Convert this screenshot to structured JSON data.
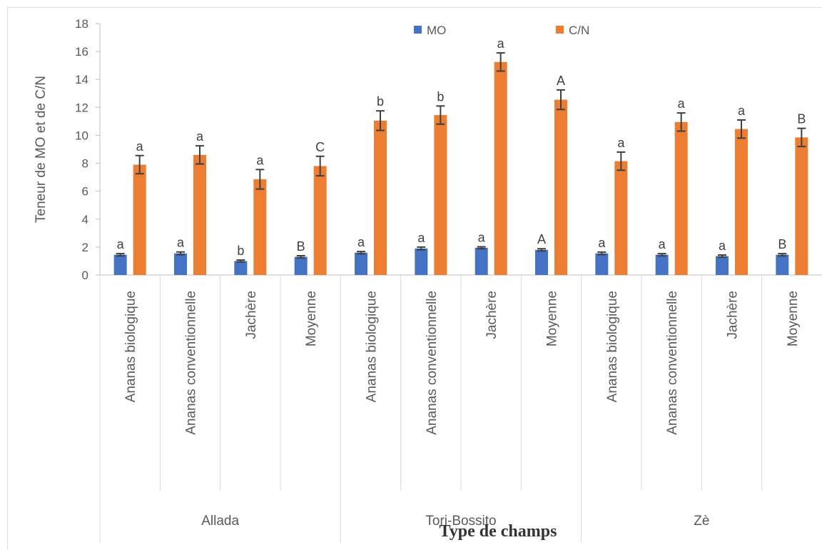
{
  "chart_data": {
    "type": "bar",
    "title": "",
    "ylabel": "Teneur de MO et de C/N",
    "xlabel": "Type de champs",
    "ylim": [
      0,
      18
    ],
    "yticks": [
      0,
      2,
      4,
      6,
      8,
      10,
      12,
      14,
      16,
      18
    ],
    "legend_position": "top-center",
    "groups": [
      {
        "name": "Allada",
        "categories": [
          "Ananas biologique",
          "Ananas conventionnelle",
          "Jachère",
          "Moyenne"
        ]
      },
      {
        "name": "Tori-Bossito",
        "categories": [
          "Ananas biologique",
          "Ananas conventionnelle",
          "Jachère",
          "Moyenne"
        ]
      },
      {
        "name": "Zè",
        "categories": [
          "Ananas biologique",
          "Ananas conventionnelle",
          "Jachère",
          "Moyenne"
        ]
      }
    ],
    "series": [
      {
        "name": "MO",
        "color": "#4472c4",
        "values": [
          1.45,
          1.55,
          1.0,
          1.3,
          1.6,
          1.9,
          1.95,
          1.8,
          1.55,
          1.45,
          1.35,
          1.45
        ],
        "errors": [
          0.08,
          0.1,
          0.07,
          0.08,
          0.08,
          0.1,
          0.07,
          0.08,
          0.09,
          0.08,
          0.08,
          0.08
        ],
        "significance": [
          "a",
          "a",
          "b",
          "B",
          "a",
          "a",
          "a",
          "A",
          "a",
          "a",
          "a",
          "B"
        ]
      },
      {
        "name": "C/N",
        "color": "#ed7d31",
        "values": [
          7.9,
          8.6,
          6.85,
          7.8,
          11.05,
          11.45,
          15.25,
          12.55,
          8.15,
          10.95,
          10.45,
          9.85
        ],
        "errors": [
          0.65,
          0.65,
          0.7,
          0.7,
          0.7,
          0.65,
          0.65,
          0.7,
          0.65,
          0.65,
          0.65,
          0.65
        ],
        "significance": [
          "a",
          "a",
          "a",
          "C",
          "b",
          "b",
          "a",
          "A",
          "a",
          "a",
          "a",
          "B"
        ]
      }
    ]
  }
}
